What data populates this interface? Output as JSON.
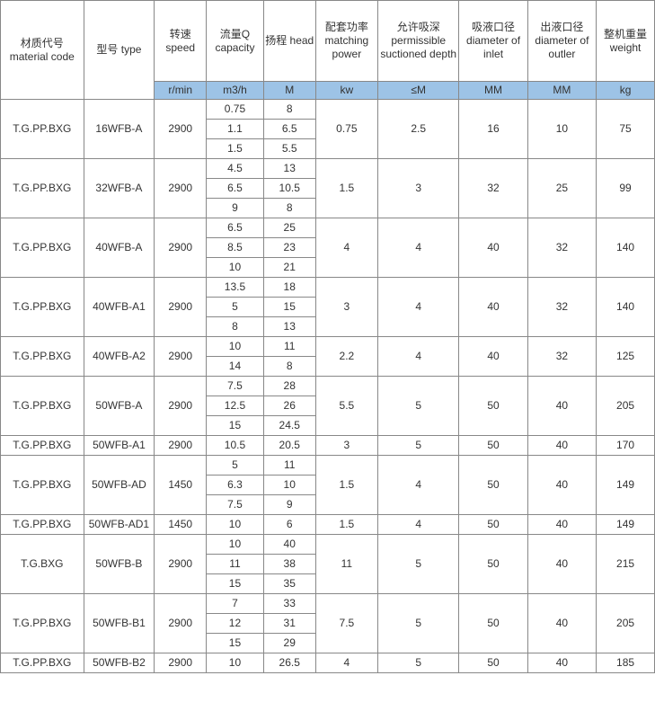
{
  "table": {
    "headers": [
      "材质代号 material code",
      "型号 type",
      "转速 speed",
      "流量Q capacity",
      "扬程 head",
      "配套功率 matching power",
      "允许吸深 permissible suctioned depth",
      "吸液口径 diameter of inlet",
      "出液口径 diameter of outler",
      "整机重量 weight"
    ],
    "units": [
      "",
      "",
      "r/min",
      "m3/h",
      "M",
      "kw",
      "≤M",
      "MM",
      "MM",
      "kg"
    ],
    "units_bg": "#9dc3e6",
    "border_color": "#888888",
    "text_color": "#333333",
    "font_size": 12,
    "rows": [
      {
        "material": "T.G.PP.BXG",
        "type": "16WFB-A",
        "speed": "2900",
        "qh": [
          [
            "0.75",
            "8"
          ],
          [
            "1.1",
            "6.5"
          ],
          [
            "1.5",
            "5.5"
          ]
        ],
        "power": "0.75",
        "depth": "2.5",
        "inlet": "16",
        "outlet": "10",
        "weight": "75"
      },
      {
        "material": "T.G.PP.BXG",
        "type": "32WFB-A",
        "speed": "2900",
        "qh": [
          [
            "4.5",
            "13"
          ],
          [
            "6.5",
            "10.5"
          ],
          [
            "9",
            "8"
          ]
        ],
        "power": "1.5",
        "depth": "3",
        "inlet": "32",
        "outlet": "25",
        "weight": "99"
      },
      {
        "material": "T.G.PP.BXG",
        "type": "40WFB-A",
        "speed": "2900",
        "qh": [
          [
            "6.5",
            "25"
          ],
          [
            "8.5",
            "23"
          ],
          [
            "10",
            "21"
          ]
        ],
        "power": "4",
        "depth": "4",
        "inlet": "40",
        "outlet": "32",
        "weight": "140"
      },
      {
        "material": "T.G.PP.BXG",
        "type": "40WFB-A1",
        "speed": "2900",
        "qh": [
          [
            "13.5",
            "18"
          ],
          [
            "5",
            "15"
          ],
          [
            "8",
            "13"
          ]
        ],
        "power": "3",
        "depth": "4",
        "inlet": "40",
        "outlet": "32",
        "weight": "140"
      },
      {
        "material": "T.G.PP.BXG",
        "type": "40WFB-A2",
        "speed": "2900",
        "qh": [
          [
            "10",
            "11"
          ],
          [
            "14",
            "8"
          ]
        ],
        "power": "2.2",
        "depth": "4",
        "inlet": "40",
        "outlet": "32",
        "weight": "125"
      },
      {
        "material": "T.G.PP.BXG",
        "type": "50WFB-A",
        "speed": "2900",
        "qh": [
          [
            "7.5",
            "28"
          ],
          [
            "12.5",
            "26"
          ],
          [
            "15",
            "24.5"
          ]
        ],
        "power": "5.5",
        "depth": "5",
        "inlet": "50",
        "outlet": "40",
        "weight": "205"
      },
      {
        "material": "T.G.PP.BXG",
        "type": "50WFB-A1",
        "speed": "2900",
        "qh": [
          [
            "10.5",
            "20.5"
          ]
        ],
        "power": "3",
        "depth": "5",
        "inlet": "50",
        "outlet": "40",
        "weight": "170"
      },
      {
        "material": "T.G.PP.BXG",
        "type": "50WFB-AD",
        "speed": "1450",
        "qh": [
          [
            "5",
            "11"
          ],
          [
            "6.3",
            "10"
          ],
          [
            "7.5",
            "9"
          ]
        ],
        "power": "1.5",
        "depth": "4",
        "inlet": "50",
        "outlet": "40",
        "weight": "149"
      },
      {
        "material": "T.G.PP.BXG",
        "type": "50WFB-AD1",
        "speed": "1450",
        "qh": [
          [
            "10",
            "6"
          ]
        ],
        "power": "1.5",
        "depth": "4",
        "inlet": "50",
        "outlet": "40",
        "weight": "149"
      },
      {
        "material": "T.G.BXG",
        "type": "50WFB-B",
        "speed": "2900",
        "qh": [
          [
            "10",
            "40"
          ],
          [
            "11",
            "38"
          ],
          [
            "15",
            "35"
          ]
        ],
        "power": "11",
        "depth": "5",
        "inlet": "50",
        "outlet": "40",
        "weight": "215"
      },
      {
        "material": "T.G.PP.BXG",
        "type": "50WFB-B1",
        "speed": "2900",
        "qh": [
          [
            "7",
            "33"
          ],
          [
            "12",
            "31"
          ],
          [
            "15",
            "29"
          ]
        ],
        "power": "7.5",
        "depth": "5",
        "inlet": "50",
        "outlet": "40",
        "weight": "205"
      },
      {
        "material": "T.G.PP.BXG",
        "type": "50WFB-B2",
        "speed": "2900",
        "qh": [
          [
            "10",
            "26.5"
          ]
        ],
        "power": "4",
        "depth": "5",
        "inlet": "50",
        "outlet": "40",
        "weight": "185"
      }
    ]
  }
}
